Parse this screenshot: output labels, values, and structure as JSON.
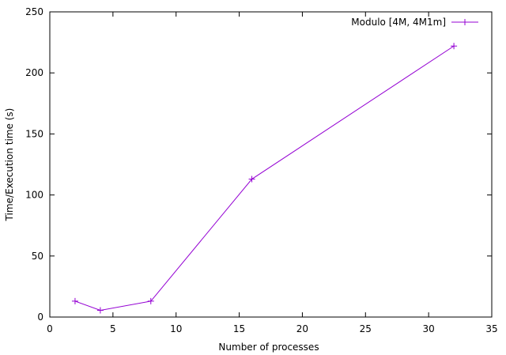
{
  "chart_data": {
    "type": "line",
    "title": "",
    "xlabel": "Number of processes",
    "ylabel": "Time/Execution time (s)",
    "xlim": [
      0,
      35
    ],
    "ylim": [
      0,
      250
    ],
    "xticks": [
      0,
      5,
      10,
      15,
      20,
      25,
      30,
      35
    ],
    "yticks": [
      0,
      50,
      100,
      150,
      200,
      250
    ],
    "grid": false,
    "legend_position": "top-right",
    "series": [
      {
        "name": "Modulo [4M, 4M1m]",
        "color": "#9400d3",
        "marker": "plus",
        "x": [
          2,
          4,
          8,
          16,
          32
        ],
        "y": [
          13,
          5.5,
          13,
          113,
          222
        ]
      }
    ]
  }
}
